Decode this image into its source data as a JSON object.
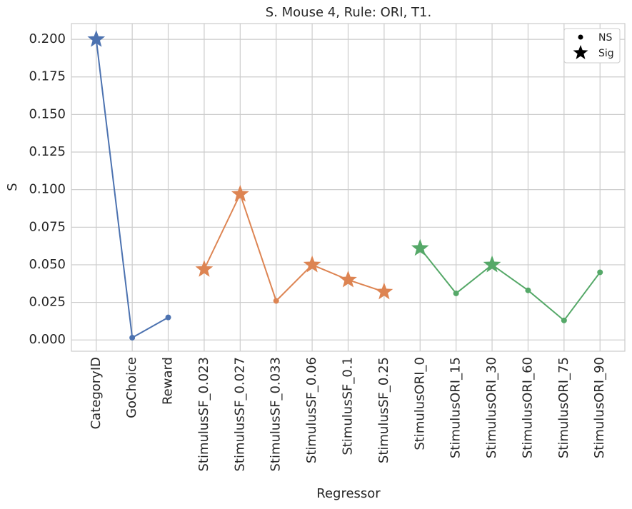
{
  "chart_data": {
    "type": "line",
    "title": "S. Mouse 4, Rule: ORI, T1.",
    "x_label": "Regressor",
    "y_label": "S",
    "categories": [
      "CategoryID",
      "GoChoice",
      "Reward",
      "StimulusSF_0.023",
      "StimulusSF_0.027",
      "StimulusSF_0.033",
      "StimulusSF_0.06",
      "StimulusSF_0.1",
      "StimulusSF_0.25",
      "StimulusORI_0",
      "StimulusORI_15",
      "StimulusORI_30",
      "StimulusORI_60",
      "StimulusORI_75",
      "StimulusORI_90"
    ],
    "series": [
      {
        "color": "#4c72b0",
        "values": [
          0.2,
          0.0015,
          0.015,
          null,
          null,
          null,
          null,
          null,
          null,
          null,
          null,
          null,
          null,
          null,
          null
        ],
        "sig": [
          true,
          false,
          false,
          null,
          null,
          null,
          null,
          null,
          null,
          null,
          null,
          null,
          null,
          null,
          null
        ]
      },
      {
        "color": "#dd8452",
        "values": [
          null,
          null,
          null,
          0.047,
          0.097,
          0.026,
          0.05,
          0.04,
          0.032,
          null,
          null,
          null,
          null,
          null,
          null
        ],
        "sig": [
          null,
          null,
          null,
          true,
          true,
          false,
          true,
          true,
          true,
          null,
          null,
          null,
          null,
          null,
          null
        ]
      },
      {
        "color": "#55a868",
        "values": [
          null,
          null,
          null,
          null,
          null,
          null,
          null,
          null,
          null,
          0.061,
          0.031,
          0.05,
          0.033,
          0.013,
          0.045
        ],
        "sig": [
          null,
          null,
          null,
          null,
          null,
          null,
          null,
          null,
          null,
          true,
          false,
          true,
          false,
          false,
          false
        ]
      }
    ],
    "legend": [
      "NS",
      "Sig"
    ],
    "legend_position": "upper right",
    "ylim": [
      -0.0075,
      0.2105
    ],
    "yticks": [
      {
        "value": 0,
        "label": "0.000"
      },
      {
        "value": 0.025,
        "label": "0.025"
      },
      {
        "value": 0.05,
        "label": "0.050"
      },
      {
        "value": 0.075,
        "label": "0.075"
      },
      {
        "value": 0.1,
        "label": "0.100"
      },
      {
        "value": 0.125,
        "label": "0.125"
      },
      {
        "value": 0.15,
        "label": "0.150"
      },
      {
        "value": 0.175,
        "label": "0.175"
      },
      {
        "value": 0.2,
        "label": "0.200"
      }
    ],
    "grid": true
  }
}
